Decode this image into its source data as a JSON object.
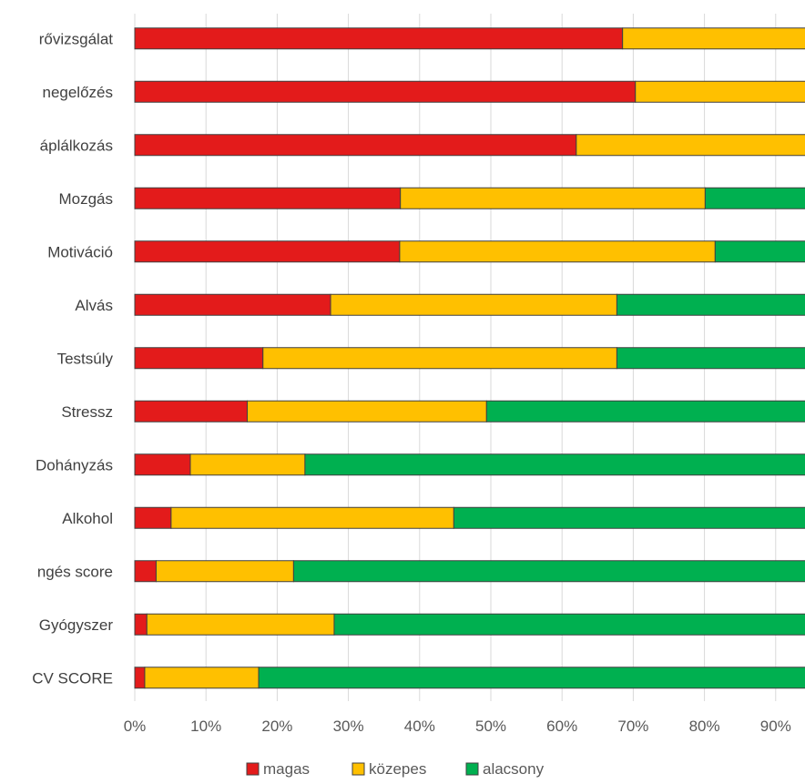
{
  "chart_data": {
    "type": "bar",
    "orientation": "horizontal",
    "stacked": true,
    "categories": [
      "Vérnyomásszűrővizsgálat",
      "Betegségmegelőzés",
      "Táplálkozás",
      "Mozgás",
      "Motiváció",
      "Alvás",
      "Testsúly",
      "Stressz",
      "Dohányzás",
      "Alkohol",
      "Életvitel-egyensúlyegészségi megfelelés score",
      "Gyógyszer",
      "CV SCORE"
    ],
    "visible_category_labels": [
      "rővizsgálat",
      "negelőzés",
      "áplálkozás",
      "Mozgás",
      "Motiváció",
      "Alvás",
      "Testsúly",
      "Stressz",
      "Dohányzás",
      "Alkohol",
      "ngés score",
      "Gyógyszer",
      "CV SCORE"
    ],
    "series": [
      {
        "name": "magas",
        "color": "#e31b1b",
        "values": [
          68.5,
          70.3,
          62,
          37.3,
          37.2,
          27.5,
          18,
          15.8,
          7.8,
          5.1,
          3,
          1.7,
          1.4
        ]
      },
      {
        "name": "közepes",
        "color": "#ffc000",
        "values": [
          31.5,
          29.7,
          38,
          42.8,
          44.3,
          40.2,
          49.7,
          33.6,
          16.1,
          39.7,
          19.3,
          26.3,
          16
        ]
      },
      {
        "name": "alacsony",
        "color": "#00b050",
        "values": [
          0,
          0,
          0,
          19.9,
          18.5,
          32.3,
          32.3,
          50.6,
          76.1,
          55.2,
          77.7,
          72,
          82.6
        ]
      }
    ],
    "xlim": [
      0,
      100
    ],
    "x_ticks": [
      "0%",
      "10%",
      "20%",
      "30%",
      "40%",
      "50%",
      "60%",
      "70%",
      "80%",
      "90%"
    ],
    "grid": true,
    "legend_position": "bottom"
  }
}
